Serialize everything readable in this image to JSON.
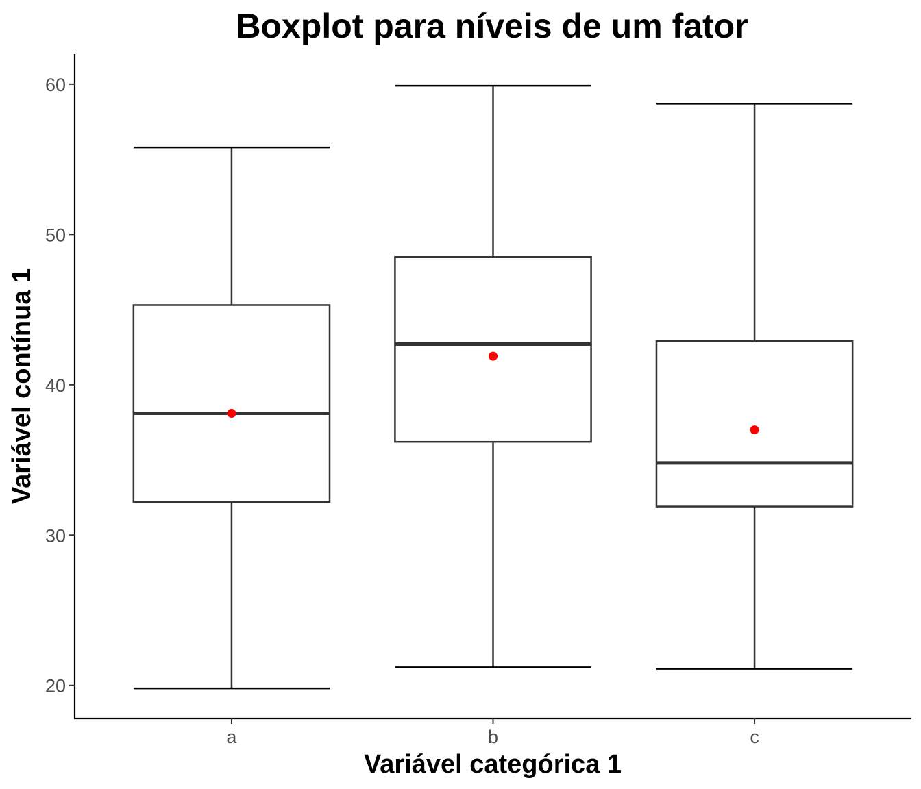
{
  "chart_data": {
    "type": "boxplot",
    "title": "Boxplot para níveis de um fator",
    "xlabel": "Variável categórica 1",
    "ylabel": "Variável contínua 1",
    "categories": [
      "a",
      "b",
      "c"
    ],
    "ylim": [
      17.8,
      62
    ],
    "yticks": [
      20,
      30,
      40,
      50,
      60
    ],
    "grid": false,
    "legend": "none",
    "boxes": [
      {
        "category": "a",
        "min": 19.8,
        "q1": 32.2,
        "median": 38.1,
        "q3": 45.3,
        "max": 55.8,
        "mean": 38.1
      },
      {
        "category": "b",
        "min": 21.2,
        "q1": 36.2,
        "median": 42.7,
        "q3": 48.5,
        "max": 59.9,
        "mean": 41.9
      },
      {
        "category": "c",
        "min": 21.1,
        "q1": 31.9,
        "median": 34.8,
        "q3": 42.9,
        "max": 58.7,
        "mean": 37.0
      }
    ],
    "colors": {
      "box_stroke": "#333333",
      "mean_point": "#ff0000",
      "tick_text": "#4d4d4d"
    }
  }
}
